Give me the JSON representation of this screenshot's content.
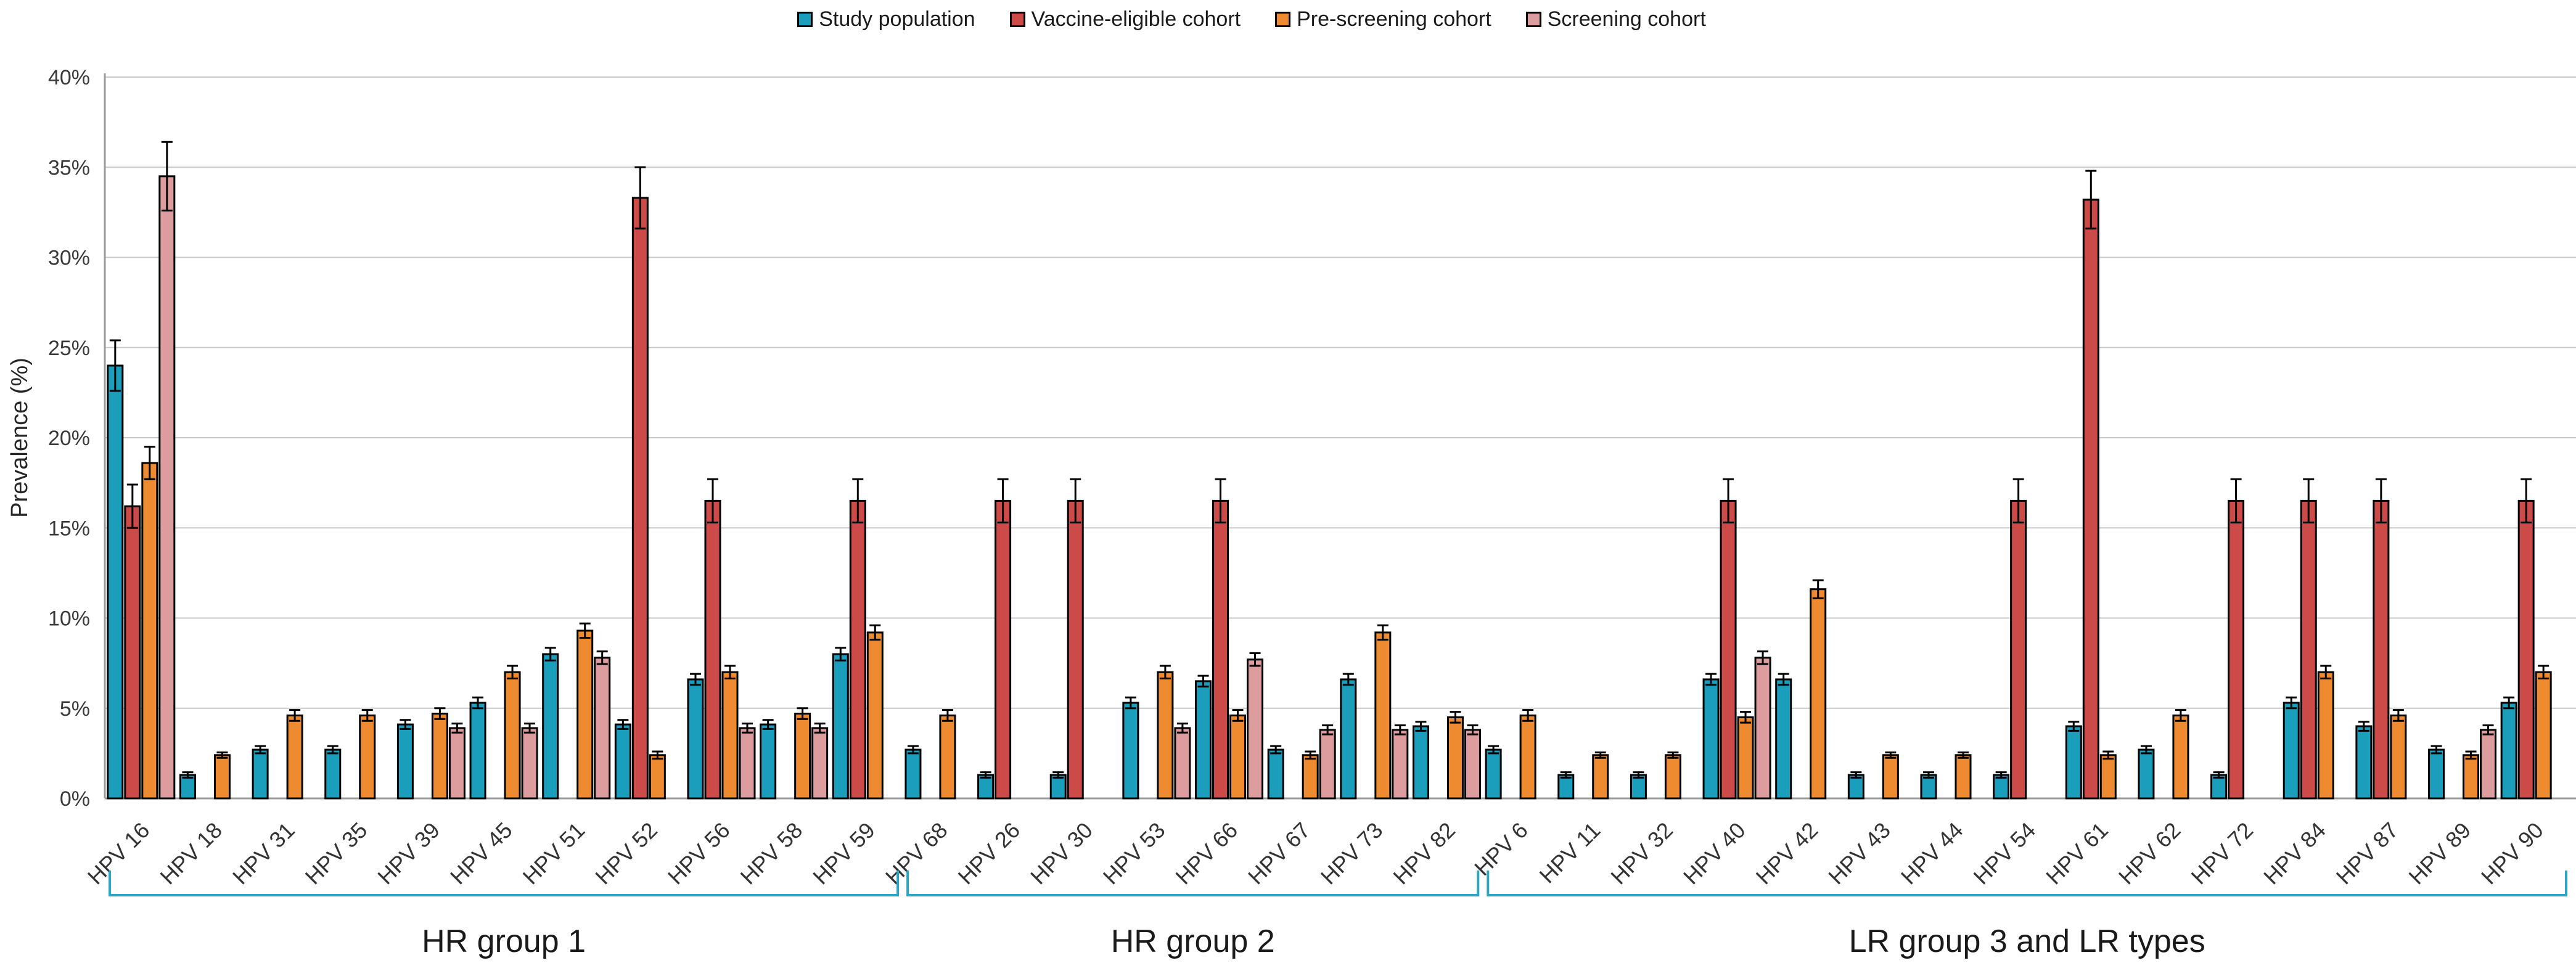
{
  "legend": [
    {
      "label": "Study population",
      "color": "#1B9EBC"
    },
    {
      "label": "Vaccine-eligible cohort",
      "color": "#CC4B49"
    },
    {
      "label": "Pre-screening cohort",
      "color": "#EE8B31"
    },
    {
      "label": "Screening cohort",
      "color": "#DD9D9E"
    }
  ],
  "chart_data": {
    "type": "bar",
    "title": "",
    "ylabel": "Prevalence (%)",
    "xlabel": "",
    "ylim": [
      0,
      40
    ],
    "ytick_step": 5,
    "ytick_suffix": "%",
    "grid": true,
    "legend_position": "top-center",
    "error_bars": true,
    "series": [
      "Study population",
      "Vaccine-eligible cohort",
      "Pre-screening cohort",
      "Screening cohort"
    ],
    "bracket_color": "#2FA5C4",
    "groups": [
      {
        "label": "HR group 1",
        "categories": [
          {
            "label": "HPV 16",
            "values": [
              24.0,
              16.2,
              18.6,
              34.5
            ],
            "errors": [
              1.4,
              1.2,
              0.9,
              1.9
            ]
          },
          {
            "label": "HPV 18",
            "values": [
              1.3,
              null,
              2.4,
              null
            ],
            "errors": [
              0.15,
              null,
              0.15,
              null
            ]
          },
          {
            "label": "HPV 31",
            "values": [
              2.7,
              null,
              4.6,
              null
            ],
            "errors": [
              0.2,
              null,
              0.3,
              null
            ]
          },
          {
            "label": "HPV 35",
            "values": [
              2.7,
              null,
              4.6,
              null
            ],
            "errors": [
              0.2,
              null,
              0.3,
              null
            ]
          },
          {
            "label": "HPV 39",
            "values": [
              4.1,
              null,
              4.7,
              3.9
            ],
            "errors": [
              0.25,
              null,
              0.3,
              0.25
            ]
          },
          {
            "label": "HPV 45",
            "values": [
              5.3,
              null,
              7.0,
              3.9
            ],
            "errors": [
              0.3,
              null,
              0.35,
              0.25
            ]
          },
          {
            "label": "HPV 51",
            "values": [
              8.0,
              null,
              9.3,
              7.8
            ],
            "errors": [
              0.35,
              null,
              0.4,
              0.35
            ]
          },
          {
            "label": "HPV 52",
            "values": [
              4.1,
              33.3,
              2.4,
              null
            ],
            "errors": [
              0.25,
              1.7,
              0.2,
              null
            ]
          },
          {
            "label": "HPV 56",
            "values": [
              6.6,
              16.5,
              7.0,
              3.9
            ],
            "errors": [
              0.3,
              1.2,
              0.35,
              0.25
            ]
          },
          {
            "label": "HPV 58",
            "values": [
              4.1,
              null,
              4.7,
              3.9
            ],
            "errors": [
              0.25,
              null,
              0.3,
              0.25
            ]
          },
          {
            "label": "HPV 59",
            "values": [
              8.0,
              16.5,
              9.2,
              null
            ],
            "errors": [
              0.35,
              1.2,
              0.4,
              null
            ]
          }
        ]
      },
      {
        "label": "HR group 2",
        "categories": [
          {
            "label": "HPV 68",
            "values": [
              2.7,
              null,
              4.6,
              null
            ],
            "errors": [
              0.2,
              null,
              0.3,
              null
            ]
          },
          {
            "label": "HPV 26",
            "values": [
              1.3,
              16.5,
              null,
              null
            ],
            "errors": [
              0.15,
              1.2,
              null,
              null
            ]
          },
          {
            "label": "HPV 30",
            "values": [
              1.3,
              16.5,
              null,
              null
            ],
            "errors": [
              0.15,
              1.2,
              null,
              null
            ]
          },
          {
            "label": "HPV 53",
            "values": [
              5.3,
              null,
              7.0,
              3.9
            ],
            "errors": [
              0.3,
              null,
              0.35,
              0.25
            ]
          },
          {
            "label": "HPV 66",
            "values": [
              6.5,
              16.5,
              4.6,
              7.7
            ],
            "errors": [
              0.3,
              1.2,
              0.3,
              0.35
            ]
          },
          {
            "label": "HPV 67",
            "values": [
              2.7,
              null,
              2.4,
              3.8
            ],
            "errors": [
              0.2,
              null,
              0.2,
              0.25
            ]
          },
          {
            "label": "HPV 73",
            "values": [
              6.6,
              null,
              9.2,
              3.8
            ],
            "errors": [
              0.3,
              null,
              0.4,
              0.25
            ]
          },
          {
            "label": "HPV 82",
            "values": [
              4.0,
              null,
              4.5,
              3.8
            ],
            "errors": [
              0.25,
              null,
              0.3,
              0.25
            ]
          }
        ]
      },
      {
        "label": "LR group 3 and LR types",
        "categories": [
          {
            "label": "HPV 6",
            "values": [
              2.7,
              null,
              4.6,
              null
            ],
            "errors": [
              0.2,
              null,
              0.3,
              null
            ]
          },
          {
            "label": "HPV 11",
            "values": [
              1.3,
              null,
              2.4,
              null
            ],
            "errors": [
              0.15,
              null,
              0.15,
              null
            ]
          },
          {
            "label": "HPV 32",
            "values": [
              1.3,
              null,
              2.4,
              null
            ],
            "errors": [
              0.15,
              null,
              0.15,
              null
            ]
          },
          {
            "label": "HPV 40",
            "values": [
              6.6,
              16.5,
              4.5,
              7.8
            ],
            "errors": [
              0.3,
              1.2,
              0.3,
              0.35
            ]
          },
          {
            "label": "HPV 42",
            "values": [
              6.6,
              null,
              11.6,
              null
            ],
            "errors": [
              0.3,
              null,
              0.5,
              null
            ]
          },
          {
            "label": "HPV 43",
            "values": [
              1.3,
              null,
              2.4,
              null
            ],
            "errors": [
              0.15,
              null,
              0.15,
              null
            ]
          },
          {
            "label": "HPV 44",
            "values": [
              1.3,
              null,
              2.4,
              null
            ],
            "errors": [
              0.15,
              null,
              0.15,
              null
            ]
          },
          {
            "label": "HPV 54",
            "values": [
              1.3,
              16.5,
              null,
              null
            ],
            "errors": [
              0.15,
              1.2,
              null,
              null
            ]
          },
          {
            "label": "HPV 61",
            "values": [
              4.0,
              33.2,
              2.4,
              null
            ],
            "errors": [
              0.25,
              1.6,
              0.2,
              null
            ]
          },
          {
            "label": "HPV 62",
            "values": [
              2.7,
              null,
              4.6,
              null
            ],
            "errors": [
              0.2,
              null,
              0.3,
              null
            ]
          },
          {
            "label": "HPV 72",
            "values": [
              1.3,
              16.5,
              null,
              null
            ],
            "errors": [
              0.15,
              1.2,
              null,
              null
            ]
          },
          {
            "label": "HPV 84",
            "values": [
              5.3,
              16.5,
              7.0,
              null
            ],
            "errors": [
              0.3,
              1.2,
              0.35,
              null
            ]
          },
          {
            "label": "HPV 87",
            "values": [
              4.0,
              16.5,
              4.6,
              null
            ],
            "errors": [
              0.25,
              1.2,
              0.3,
              null
            ]
          },
          {
            "label": "HPV 89",
            "values": [
              2.7,
              null,
              2.4,
              3.8
            ],
            "errors": [
              0.2,
              null,
              0.2,
              0.25
            ]
          },
          {
            "label": "HPV 90",
            "values": [
              5.3,
              16.5,
              7.0,
              null
            ],
            "errors": [
              0.3,
              1.2,
              0.35,
              null
            ]
          }
        ]
      }
    ]
  }
}
